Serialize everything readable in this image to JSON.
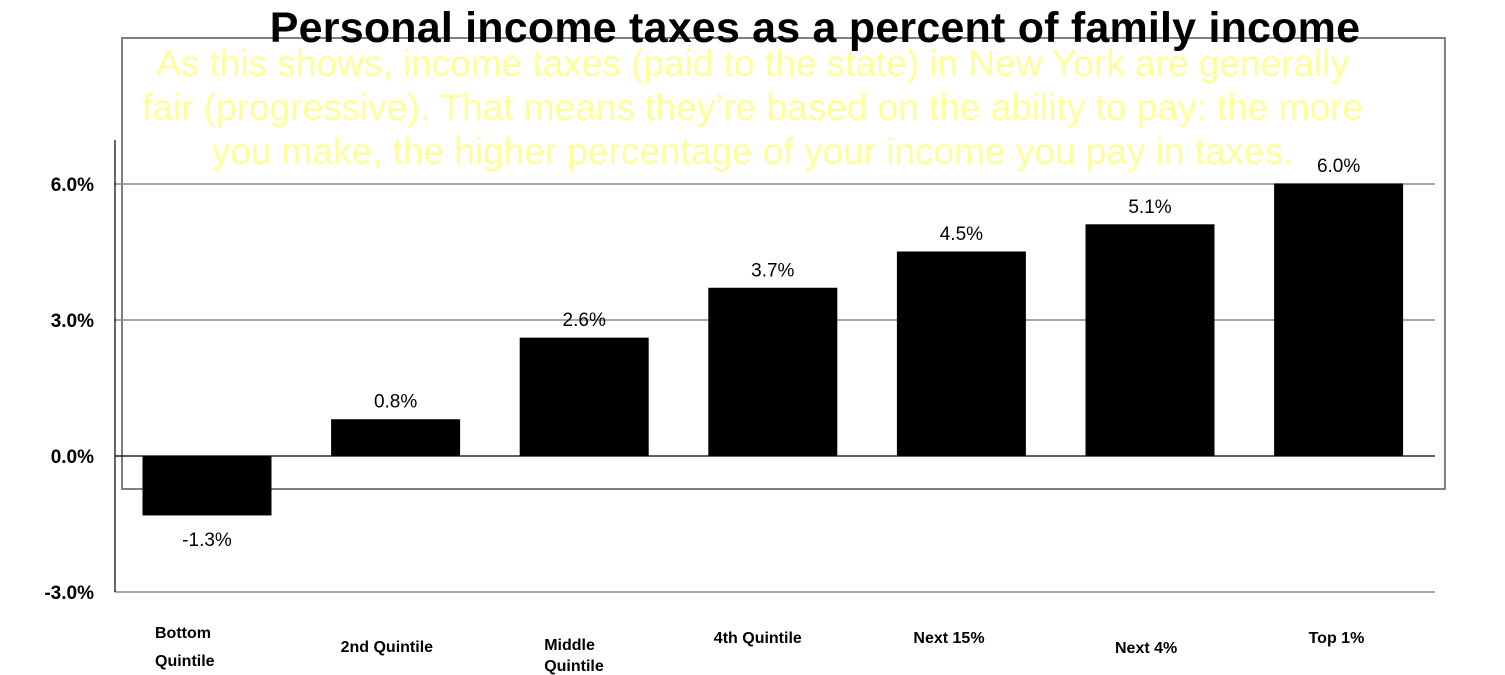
{
  "overlay_text": [
    "As this shows, income taxes (paid to the state) in New York are generally",
    "fair (progressive).  That means they’re based on the ability to pay: the more",
    "you make, the higher percentage of your income you pay in taxes."
  ],
  "colors": {
    "bar": "#000000",
    "overlay_text": "#ffff99",
    "gridline": "#8c8c8c",
    "box_border": "#808080"
  },
  "chart_data": {
    "type": "bar",
    "title": "Personal income taxes as a percent of family income",
    "categories": [
      "Bottom Quintile",
      "2nd Quintile",
      "Middle Quintile",
      "4th Quintile",
      "Next 15%",
      "Next 4%",
      "Top 1%"
    ],
    "values": [
      -1.3,
      0.8,
      2.6,
      3.7,
      4.5,
      5.1,
      6.0
    ],
    "data_labels": [
      "-1.3%",
      "0.8%",
      "2.6%",
      "3.7%",
      "4.5%",
      "5.1%",
      "6.0%"
    ],
    "y_ticks": [
      {
        "value": 6.0,
        "label": "6.0%"
      },
      {
        "value": 3.0,
        "label": "3.0%"
      },
      {
        "value": 0.0,
        "label": "0.0%"
      },
      {
        "value": -3.0,
        "label": "-3.0%"
      }
    ],
    "ylim": [
      -3.0,
      6.0
    ],
    "xlabel": "",
    "ylabel": "",
    "grid": true,
    "legend": "none"
  }
}
